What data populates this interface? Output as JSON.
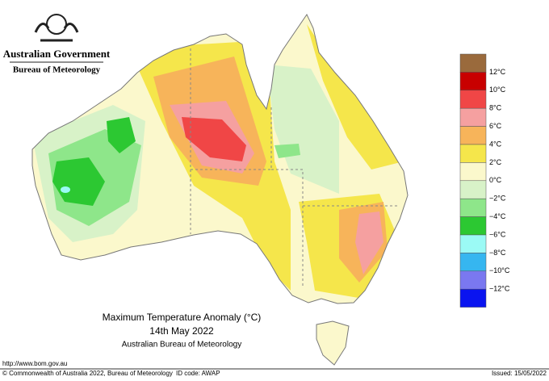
{
  "header": {
    "government": "Australian Government",
    "agency": "Bureau of Meteorology"
  },
  "map": {
    "title": "Maximum Temperature Anomaly (°C)",
    "date": "14th May 2022",
    "source": "Australian Bureau of Meteorology"
  },
  "legend": {
    "labels": [
      "12°C",
      "10°C",
      "8°C",
      "6°C",
      "4°C",
      "2°C",
      "0°C",
      "−2°C",
      "−4°C",
      "−6°C",
      "−8°C",
      "−10°C",
      "−12°C"
    ],
    "colors": [
      "#9a6a3c",
      "#c80000",
      "#f04646",
      "#f5a0a0",
      "#f7b45a",
      "#f5e64b",
      "#fbf8cc",
      "#d8f2c8",
      "#8ee68a",
      "#2cc832",
      "#9bfaf5",
      "#36b6f0",
      "#7a78f0",
      "#0a14f0"
    ]
  },
  "footer": {
    "url": "http://www.bom.gov.au",
    "copyright": "© Commonwealth of Australia 2022, Bureau of Meteorology",
    "id_code": "ID code: AWAP",
    "issued": "Issued: 15/05/2022"
  }
}
